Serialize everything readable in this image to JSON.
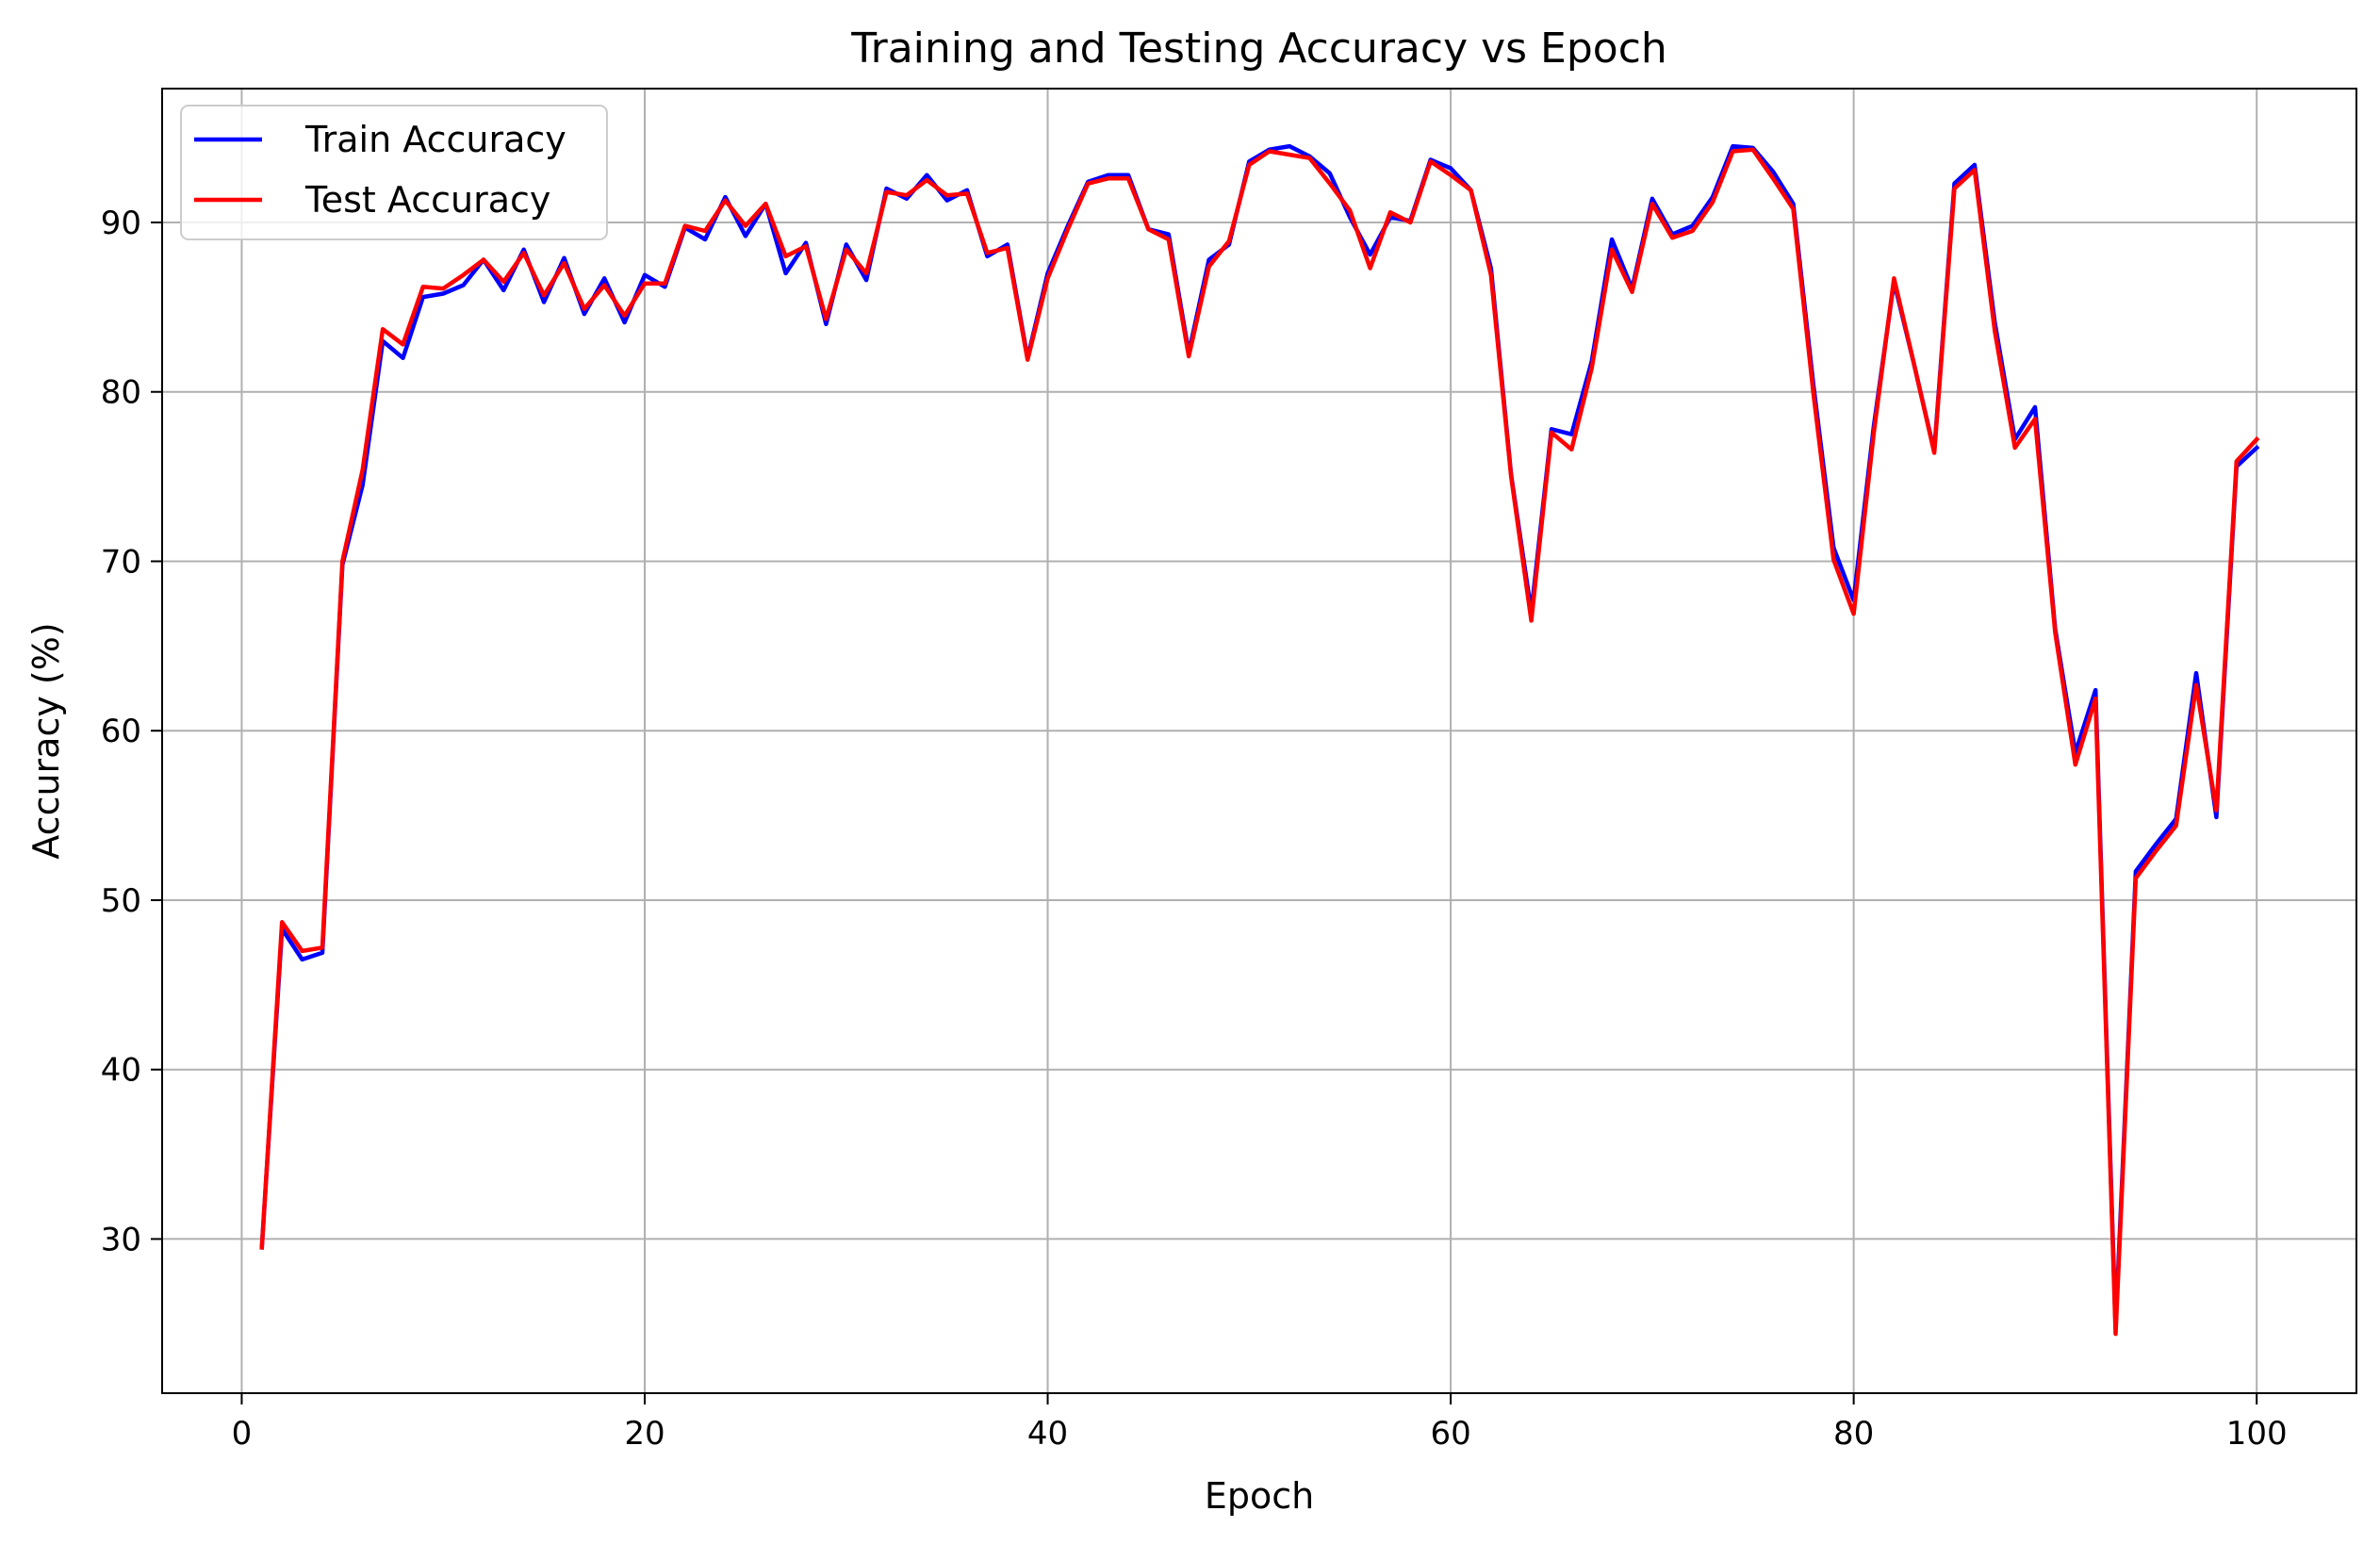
{
  "chart_data": {
    "type": "line",
    "title": "Training and Testing Accuracy vs Epoch",
    "xlabel": "Epoch",
    "ylabel": "Accuracy (%)",
    "xlim": [
      -3.95,
      104.95
    ],
    "ylim": [
      20.9,
      97.9
    ],
    "xticks": [
      0,
      20,
      40,
      60,
      80,
      100
    ],
    "yticks": [
      30,
      40,
      50,
      60,
      70,
      80,
      90
    ],
    "grid": true,
    "legend": "top-left",
    "x": [
      1,
      2,
      3,
      4,
      5,
      6,
      7,
      8,
      9,
      10,
      11,
      12,
      13,
      14,
      15,
      16,
      17,
      18,
      19,
      20,
      21,
      22,
      23,
      24,
      25,
      26,
      27,
      28,
      29,
      30,
      31,
      32,
      33,
      34,
      35,
      36,
      37,
      38,
      39,
      40,
      41,
      42,
      43,
      44,
      45,
      46,
      47,
      48,
      49,
      50,
      51,
      52,
      53,
      54,
      55,
      56,
      57,
      58,
      59,
      60,
      61,
      62,
      63,
      64,
      65,
      66,
      67,
      68,
      69,
      70,
      71,
      72,
      73,
      74,
      75,
      76,
      77,
      78,
      79,
      80,
      81,
      82,
      83,
      84,
      85,
      86,
      87,
      88,
      89,
      90,
      91,
      92,
      93,
      94,
      95,
      96,
      97,
      98,
      99,
      100
    ],
    "series": [
      {
        "name": "Train Accuracy",
        "color": "#0000ff",
        "values": [
          29.5,
          48.3,
          46.5,
          46.9,
          69.8,
          74.5,
          83.0,
          82.0,
          85.6,
          85.8,
          86.3,
          87.8,
          86.0,
          88.4,
          85.3,
          87.9,
          84.6,
          86.7,
          84.1,
          86.9,
          86.2,
          89.7,
          89.0,
          91.5,
          89.2,
          91.1,
          87.0,
          88.8,
          84.0,
          88.7,
          86.6,
          92.0,
          91.4,
          92.8,
          91.3,
          91.9,
          88.0,
          88.7,
          82.0,
          87.0,
          89.8,
          92.4,
          92.8,
          92.8,
          89.6,
          89.3,
          82.3,
          87.8,
          88.7,
          93.6,
          94.3,
          94.5,
          93.9,
          92.9,
          90.3,
          88.1,
          90.3,
          90.1,
          93.7,
          93.2,
          91.9,
          87.3,
          75.1,
          67.0,
          77.8,
          77.5,
          81.8,
          89.0,
          86.1,
          91.4,
          89.3,
          89.8,
          91.5,
          94.5,
          94.4,
          93.0,
          91.1,
          80.4,
          70.8,
          67.7,
          78.0,
          86.5,
          81.6,
          76.5,
          92.3,
          93.4,
          84.1,
          77.2,
          79.1,
          66.0,
          58.7,
          62.4,
          24.8,
          51.7,
          53.3,
          54.8,
          63.4,
          54.9,
          75.6,
          76.7
        ]
      },
      {
        "name": "Test Accuracy",
        "color": "#ff0000",
        "values": [
          29.5,
          48.7,
          47.0,
          47.2,
          70.0,
          75.4,
          83.7,
          82.8,
          86.2,
          86.1,
          86.9,
          87.8,
          86.5,
          88.2,
          85.7,
          87.6,
          84.9,
          86.3,
          84.5,
          86.4,
          86.4,
          89.8,
          89.5,
          91.3,
          89.8,
          91.1,
          88.0,
          88.6,
          84.3,
          88.4,
          87.0,
          91.8,
          91.6,
          92.5,
          91.6,
          91.7,
          88.2,
          88.5,
          81.9,
          86.7,
          89.6,
          92.3,
          92.6,
          92.6,
          89.6,
          89.0,
          82.1,
          87.4,
          88.9,
          93.4,
          94.2,
          94.0,
          93.8,
          92.3,
          90.7,
          87.3,
          90.6,
          90.0,
          93.6,
          92.8,
          91.9,
          86.9,
          75.0,
          66.5,
          77.6,
          76.6,
          81.4,
          88.4,
          85.9,
          91.1,
          89.1,
          89.5,
          91.2,
          94.2,
          94.3,
          92.6,
          90.8,
          79.9,
          70.1,
          66.9,
          77.6,
          86.7,
          81.6,
          76.4,
          92.0,
          93.1,
          83.6,
          76.7,
          78.4,
          65.8,
          58.0,
          61.9,
          24.4,
          51.3,
          52.9,
          54.4,
          62.7,
          55.3,
          75.9,
          77.2
        ]
      }
    ]
  }
}
